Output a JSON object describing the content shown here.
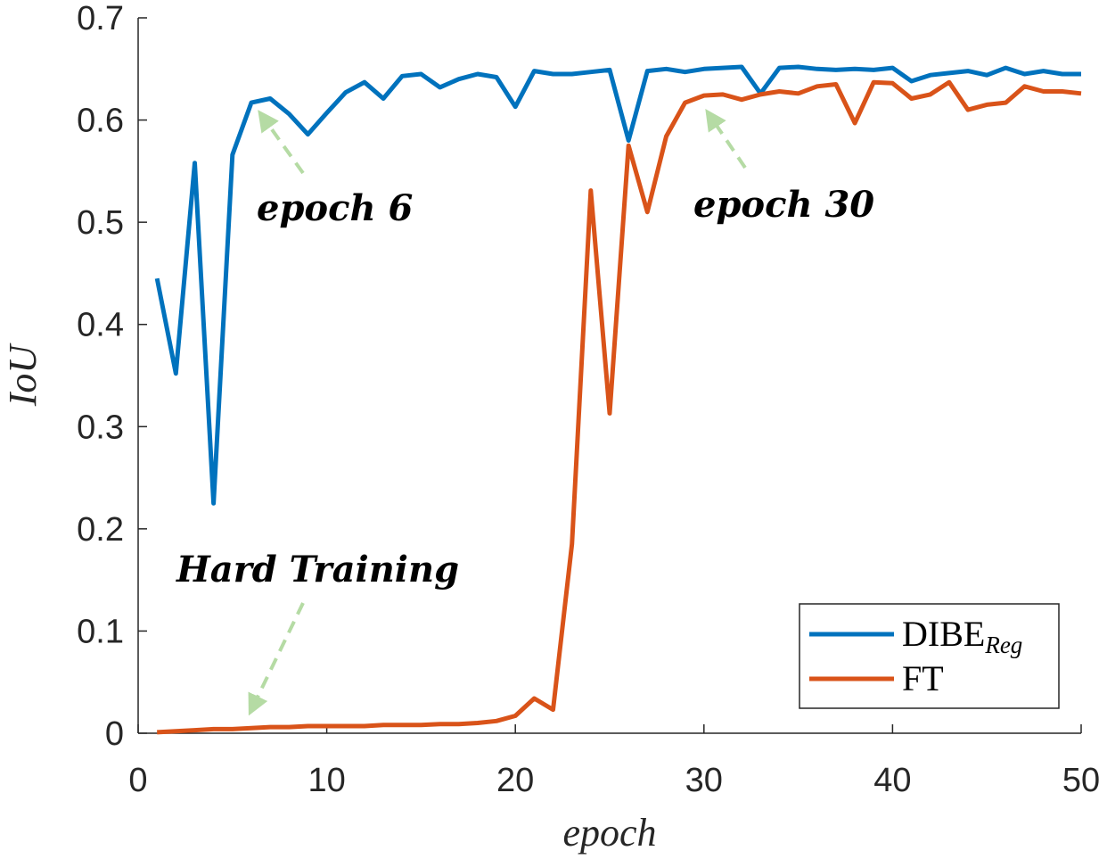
{
  "chart_data": {
    "type": "line",
    "xlabel": "epoch",
    "ylabel": "IoU",
    "xlim": [
      0,
      50
    ],
    "ylim": [
      0,
      0.7
    ],
    "xticks": [
      "0",
      "10",
      "20",
      "30",
      "40",
      "50"
    ],
    "yticks": [
      "0",
      "0.1",
      "0.2",
      "0.3",
      "0.4",
      "0.5",
      "0.6",
      "0.7"
    ],
    "x": [
      1,
      2,
      3,
      4,
      5,
      6,
      7,
      8,
      9,
      10,
      11,
      12,
      13,
      14,
      15,
      16,
      17,
      18,
      19,
      20,
      21,
      22,
      23,
      24,
      25,
      26,
      27,
      28,
      29,
      30,
      31,
      32,
      33,
      34,
      35,
      36,
      37,
      38,
      39,
      40,
      41,
      42,
      43,
      44,
      45,
      46,
      47,
      48,
      49,
      50
    ],
    "series": [
      {
        "name": "DIBE",
        "name_subscript": "Reg",
        "color": "#0072BD",
        "values": [
          0.445,
          0.352,
          0.558,
          0.225,
          0.566,
          0.617,
          0.621,
          0.606,
          0.586,
          0.607,
          0.627,
          0.637,
          0.621,
          0.643,
          0.645,
          0.632,
          0.64,
          0.645,
          0.642,
          0.613,
          0.648,
          0.645,
          0.645,
          0.647,
          0.649,
          0.58,
          0.648,
          0.65,
          0.647,
          0.65,
          0.651,
          0.652,
          0.626,
          0.651,
          0.652,
          0.65,
          0.649,
          0.65,
          0.649,
          0.651,
          0.638,
          0.644,
          0.646,
          0.648,
          0.644,
          0.651,
          0.645,
          0.648,
          0.645,
          0.645
        ]
      },
      {
        "name": "FT",
        "color": "#D95319",
        "values": [
          0.001,
          0.002,
          0.003,
          0.004,
          0.004,
          0.005,
          0.006,
          0.006,
          0.007,
          0.007,
          0.007,
          0.007,
          0.008,
          0.008,
          0.008,
          0.009,
          0.009,
          0.01,
          0.012,
          0.017,
          0.034,
          0.023,
          0.185,
          0.531,
          0.313,
          0.575,
          0.51,
          0.584,
          0.617,
          0.624,
          0.625,
          0.62,
          0.625,
          0.628,
          0.626,
          0.633,
          0.635,
          0.597,
          0.637,
          0.636,
          0.621,
          0.625,
          0.637,
          0.61,
          0.615,
          0.617,
          0.633,
          0.628,
          0.628,
          0.626
        ]
      }
    ],
    "legend_position": "bottom-right",
    "grid": false,
    "annotations": [
      {
        "text": "epoch 6",
        "target_x": 6,
        "target_y": 0.617
      },
      {
        "text": "epoch 30",
        "target_x": 30,
        "target_y": 0.624
      },
      {
        "text": "Hard Training",
        "target_x": 6,
        "target_y": 0.005
      }
    ],
    "arrow_color": "#B5DBA4"
  }
}
